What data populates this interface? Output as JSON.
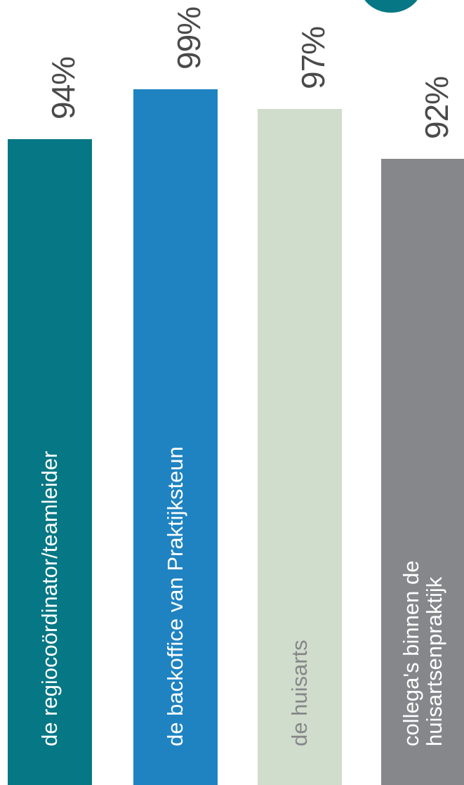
{
  "chart_data": {
    "type": "bar",
    "orientation": "vertical",
    "categories": [
      "de regiocoördinator/teamleider",
      "de backoffice van Praktijksteun",
      "de huisarts",
      "collega's binnen de huisartsenpraktijk"
    ],
    "category_lines": [
      [
        "de regiocoördinator/teamleider"
      ],
      [
        "de backoffice van Praktijksteun"
      ],
      [
        "de huisarts"
      ],
      [
        "collega's binnen de",
        "huisartsenpraktijk"
      ]
    ],
    "values": [
      94,
      99,
      97,
      92
    ],
    "value_labels": [
      "94%",
      "99%",
      "97%",
      "92%"
    ],
    "colors": [
      "#057785",
      "#1f83c2",
      "#d1ddcc",
      "#86878a"
    ],
    "label_colors": [
      "#ffffff",
      "#ffffff",
      "#86878a",
      "#ffffff"
    ],
    "accent_color": "#057785",
    "unit": "%",
    "title": "",
    "xlabel": "",
    "ylabel": "",
    "grid": false,
    "legend": "none"
  }
}
